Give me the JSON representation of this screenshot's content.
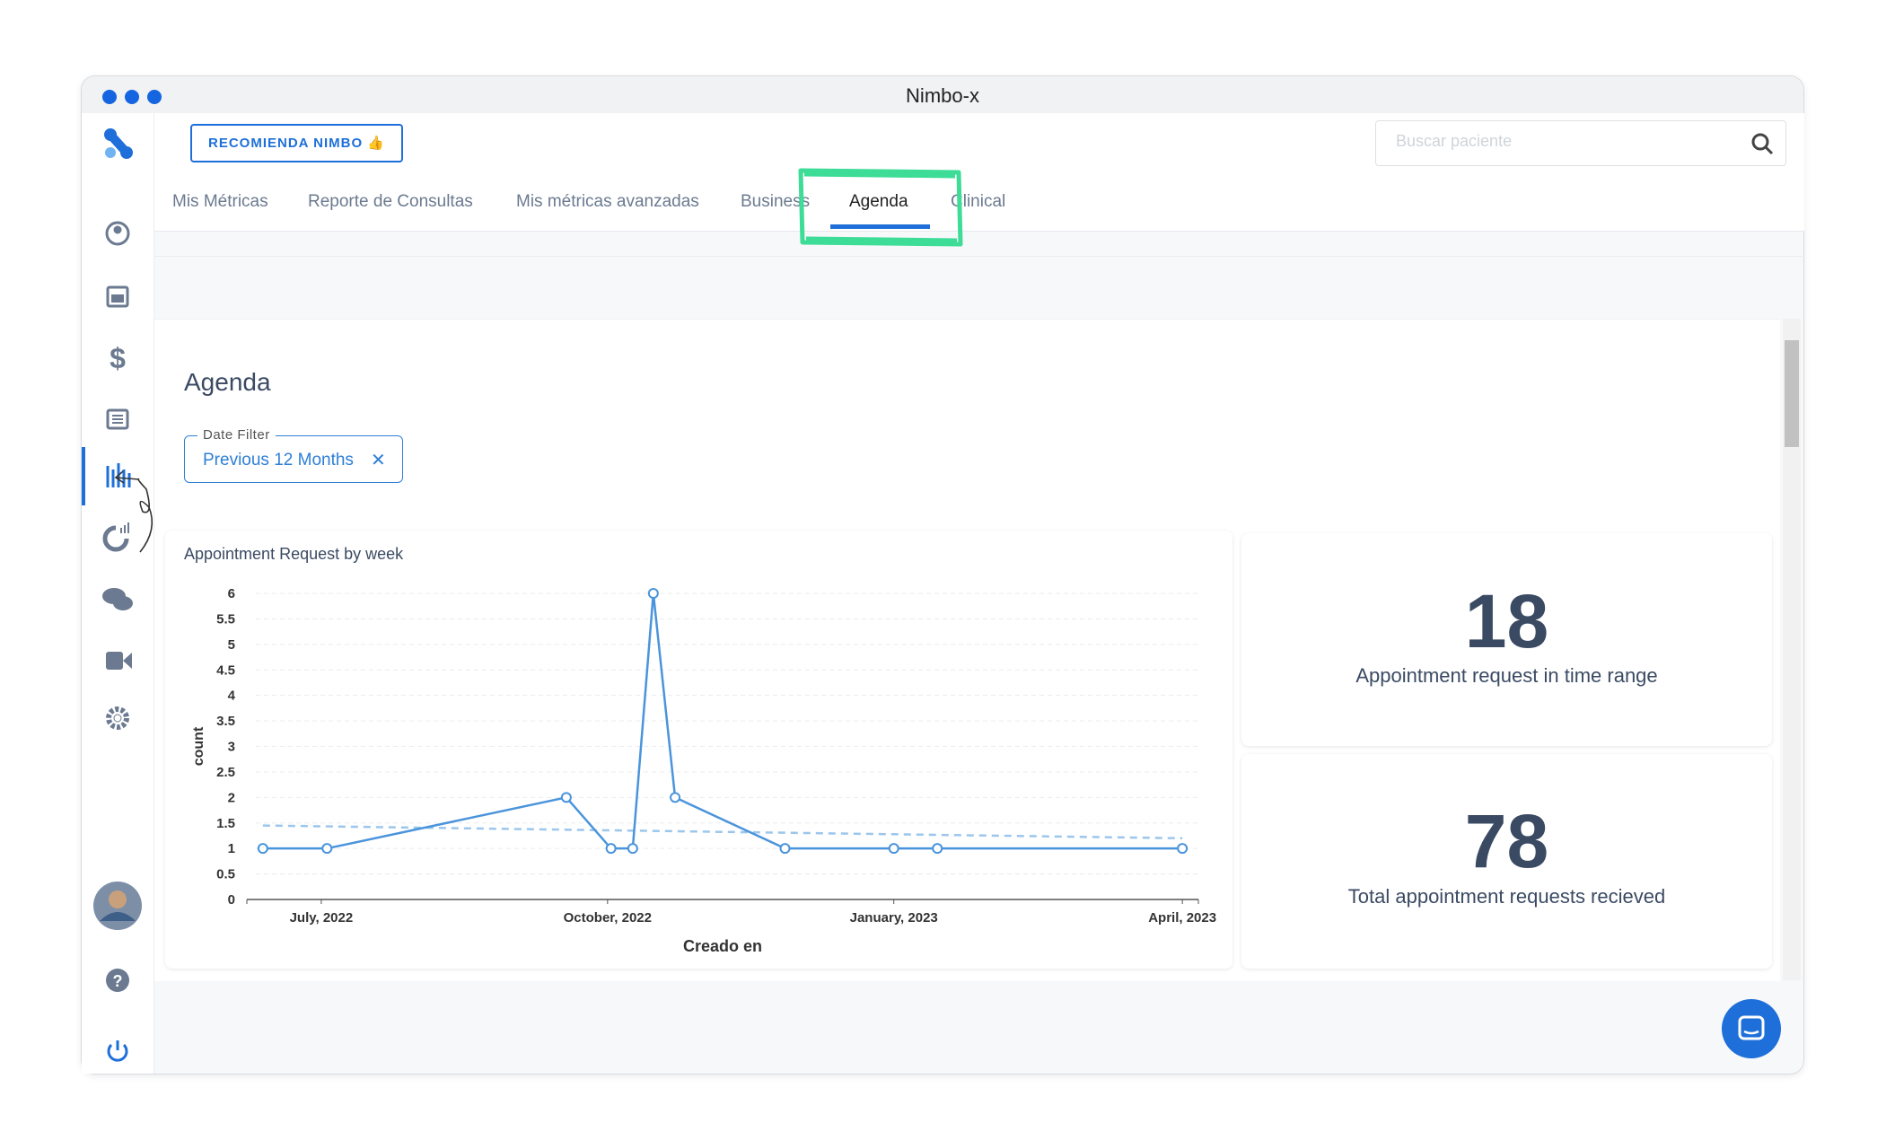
{
  "window": {
    "title": "Nimbo-x"
  },
  "topbar": {
    "button": "RECOMIENDA NIMBO 👍",
    "search_placeholder": "Buscar paciente"
  },
  "tabs": [
    "Mis Métricas",
    "Reporte de Consultas",
    "Mis métricas avanzadas",
    "Business",
    "Agenda",
    "Clinical"
  ],
  "page": {
    "heading": "Agenda",
    "filter_label": "Date Filter",
    "filter_value": "Previous 12 Months"
  },
  "chart_data": {
    "type": "line",
    "title": "Appointment Request by week",
    "x_label": "Creado en",
    "y_label": "count",
    "series": [
      {
        "color": "#4a94dc",
        "x": [
          2022.449,
          2022.505,
          2022.714,
          2022.753,
          2022.772,
          2022.79,
          2022.809,
          2022.905,
          2023.0,
          2023.038,
          2023.252
        ],
        "values": [
          1,
          1,
          2,
          1,
          1,
          6,
          2,
          1,
          1,
          1,
          1
        ]
      },
      {
        "color": "#9cc6ec",
        "dashed": true,
        "x": [
          2022.449,
          2023.252
        ],
        "values": [
          1.45,
          1.2
        ]
      }
    ],
    "xlim": [
      2022.435,
      2023.266
    ],
    "xticks": [
      {
        "value": 2022.5,
        "label": "July, 2022"
      },
      {
        "value": 2022.75,
        "label": "October, 2022"
      },
      {
        "value": 2023.0,
        "label": "January, 2023"
      },
      {
        "value": 2023.252,
        "label": "April, 2023"
      }
    ],
    "ylim": [
      0,
      6
    ],
    "yticks": [
      0,
      0.5,
      1,
      1.5,
      2,
      2.5,
      3,
      3.5,
      4,
      4.5,
      5,
      5.5,
      6
    ],
    "grid": true
  },
  "kpis": [
    {
      "value": 18,
      "label": "Appointment request in time range"
    },
    {
      "value": 78,
      "label": "Total appointment requests recieved"
    }
  ]
}
